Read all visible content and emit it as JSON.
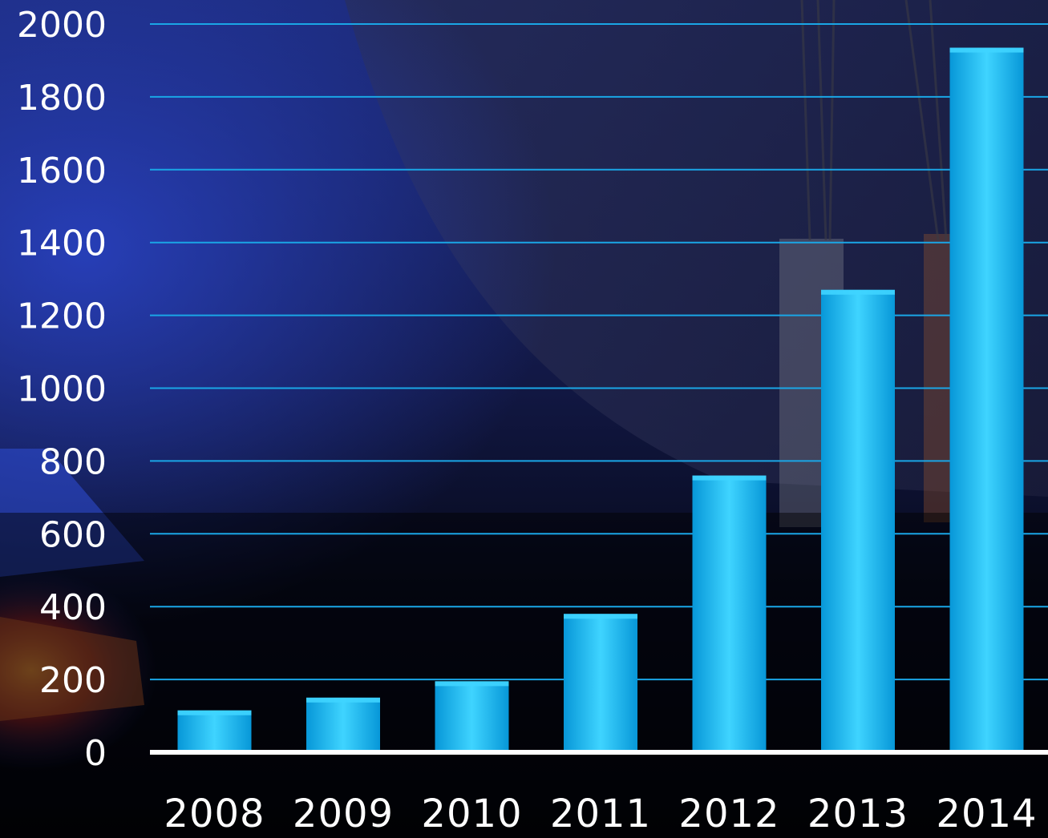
{
  "chart_data": {
    "type": "bar",
    "categories": [
      "2008",
      "2009",
      "2010",
      "2011",
      "2012",
      "2013",
      "2014"
    ],
    "values": [
      115,
      150,
      195,
      380,
      760,
      1270,
      1935
    ],
    "ylim": [
      0,
      2000
    ],
    "yticks": [
      0,
      200,
      400,
      600,
      800,
      1000,
      1200,
      1400,
      1600,
      1800,
      2000
    ],
    "grid": true,
    "colors": {
      "bar_top": "#3fd4ff",
      "bar_mid": "#10b8f5",
      "bar_bottom": "#0797d8",
      "gridline": "#1aa6e6",
      "baseline": "#ffffff",
      "text": "#ffffff"
    }
  }
}
